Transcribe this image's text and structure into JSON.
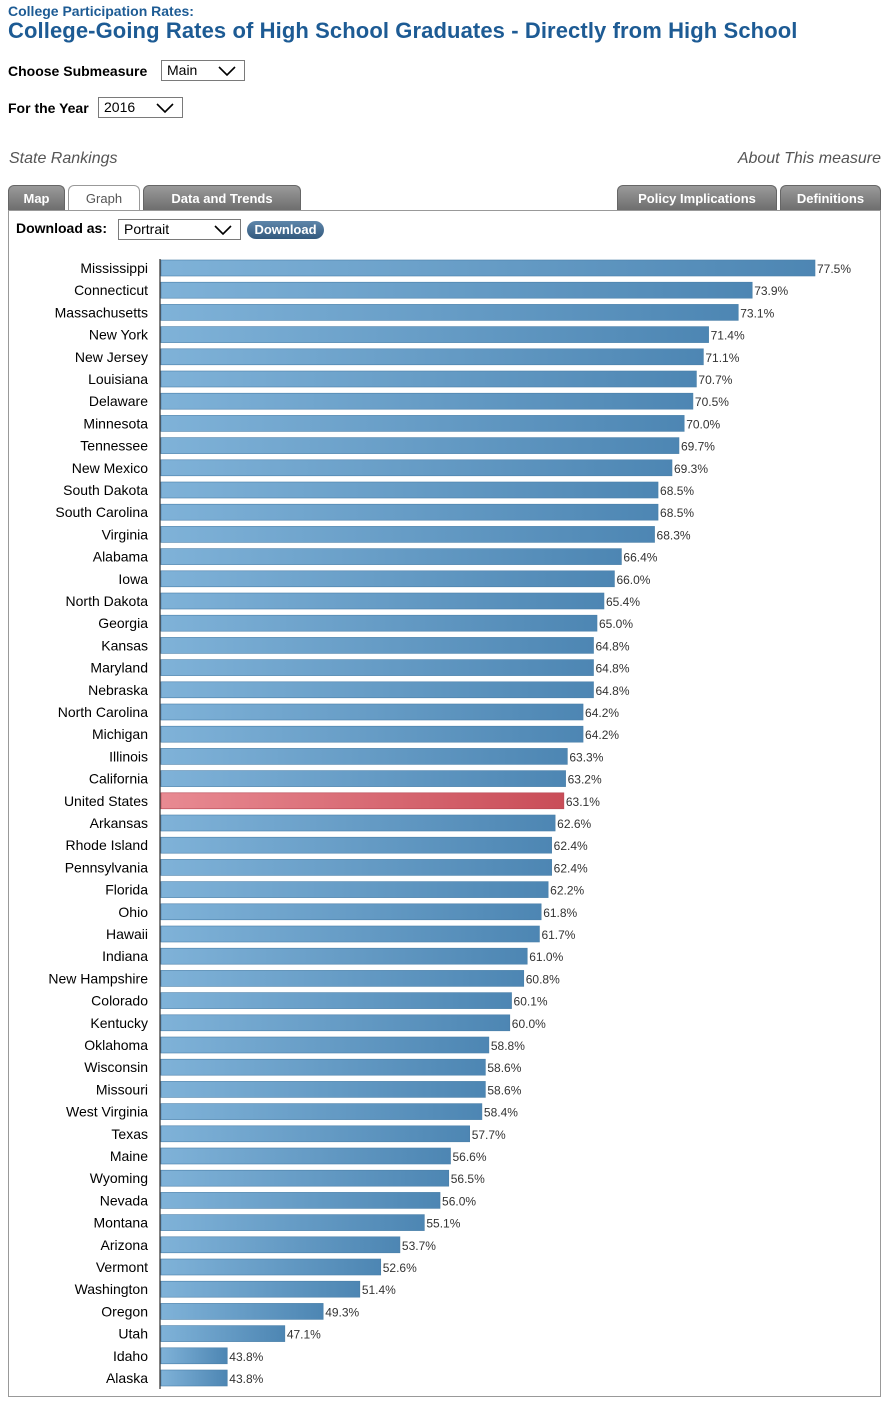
{
  "header": {
    "subtitle": "College Participation Rates:",
    "title": "College-Going Rates of High School Graduates - Directly from High School"
  },
  "controls": {
    "submeasure_label": "Choose Submeasure",
    "submeasure_value": "Main",
    "year_label": "For the Year",
    "year_value": "2016"
  },
  "links": {
    "state_rankings": "State Rankings",
    "about": "About This measure"
  },
  "tabs": [
    {
      "label": "Map"
    },
    {
      "label": "Graph",
      "active": true
    },
    {
      "label": "Data and Trends"
    },
    {
      "label": "Policy Implications"
    },
    {
      "label": "Definitions"
    }
  ],
  "download": {
    "label": "Download as:",
    "format_value": "Portrait",
    "button_label": "Download"
  },
  "colors": {
    "bar": "#5a96c3",
    "highlight_bar": "#d9606a",
    "title": "#1d5b94"
  },
  "chart_data": {
    "type": "bar",
    "orientation": "horizontal",
    "highlight": "United States",
    "value_suffix": "%",
    "xlim": [
      40,
      78
    ],
    "categories": [
      "Mississippi",
      "Connecticut",
      "Massachusetts",
      "New York",
      "New Jersey",
      "Louisiana",
      "Delaware",
      "Minnesota",
      "Tennessee",
      "New Mexico",
      "South Dakota",
      "South Carolina",
      "Virginia",
      "Alabama",
      "Iowa",
      "North Dakota",
      "Georgia",
      "Kansas",
      "Maryland",
      "Nebraska",
      "North Carolina",
      "Michigan",
      "Illinois",
      "California",
      "United States",
      "Arkansas",
      "Rhode Island",
      "Pennsylvania",
      "Florida",
      "Ohio",
      "Hawaii",
      "Indiana",
      "New Hampshire",
      "Colorado",
      "Kentucky",
      "Oklahoma",
      "Wisconsin",
      "Missouri",
      "West Virginia",
      "Texas",
      "Maine",
      "Wyoming",
      "Nevada",
      "Montana",
      "Arizona",
      "Vermont",
      "Washington",
      "Oregon",
      "Utah",
      "Idaho",
      "Alaska"
    ],
    "values": [
      77.5,
      73.9,
      73.1,
      71.4,
      71.1,
      70.7,
      70.5,
      70.0,
      69.7,
      69.3,
      68.5,
      68.5,
      68.3,
      66.4,
      66.0,
      65.4,
      65.0,
      64.8,
      64.8,
      64.8,
      64.2,
      64.2,
      63.3,
      63.2,
      63.1,
      62.6,
      62.4,
      62.4,
      62.2,
      61.8,
      61.7,
      61.0,
      60.8,
      60.1,
      60.0,
      58.8,
      58.6,
      58.6,
      58.4,
      57.7,
      56.6,
      56.5,
      56.0,
      55.1,
      53.7,
      52.6,
      51.4,
      49.3,
      47.1,
      43.8,
      43.8
    ],
    "labels": [
      "77.5%",
      "73.9%",
      "73.1%",
      "71.4%",
      "71.1%",
      "70.7%",
      "70.5%",
      "70.0%",
      "69.7%",
      "69.3%",
      "68.5%",
      "68.5%",
      "68.3%",
      "66.4%",
      "66.0%",
      "65.4%",
      "65.0%",
      "64.8%",
      "64.8%",
      "64.8%",
      "64.2%",
      "64.2%",
      "63.3%",
      "63.2%",
      "63.1%",
      "62.6%",
      "62.4%",
      "62.4%",
      "62.2%",
      "61.8%",
      "61.7%",
      "61.0%",
      "60.8%",
      "60.1%",
      "60.0%",
      "58.8%",
      "58.6%",
      "58.6%",
      "58.4%",
      "57.7%",
      "56.6%",
      "56.5%",
      "56.0%",
      "55.1%",
      "53.7%",
      "52.6%",
      "51.4%",
      "49.3%",
      "47.1%",
      "43.8%",
      "43.8%"
    ]
  }
}
